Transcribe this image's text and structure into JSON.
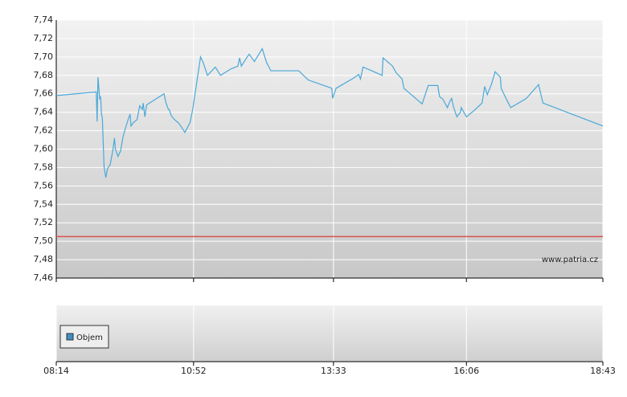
{
  "chart_data": {
    "type": "line",
    "watermark": "www.patria.cz",
    "volume_legend": "Objem",
    "volume_legend_color": "#3d8fc6",
    "xlim": [
      494,
      1123
    ],
    "xticks": [
      {
        "value": 494,
        "label": "08:14"
      },
      {
        "value": 652,
        "label": "10:52"
      },
      {
        "value": 813,
        "label": "13:33"
      },
      {
        "value": 966,
        "label": "16:06"
      },
      {
        "value": 1123,
        "label": "18:43"
      }
    ],
    "ylim": [
      7.46,
      7.74
    ],
    "yticks": [
      {
        "value": 7.46,
        "label": "7,46"
      },
      {
        "value": 7.48,
        "label": "7,48"
      },
      {
        "value": 7.5,
        "label": "7,50"
      },
      {
        "value": 7.52,
        "label": "7,52"
      },
      {
        "value": 7.54,
        "label": "7,54"
      },
      {
        "value": 7.56,
        "label": "7,56"
      },
      {
        "value": 7.58,
        "label": "7,58"
      },
      {
        "value": 7.6,
        "label": "7,60"
      },
      {
        "value": 7.62,
        "label": "7,62"
      },
      {
        "value": 7.64,
        "label": "7,64"
      },
      {
        "value": 7.66,
        "label": "7,66"
      },
      {
        "value": 7.68,
        "label": "7,68"
      },
      {
        "value": 7.7,
        "label": "7,70"
      },
      {
        "value": 7.72,
        "label": "7,72"
      },
      {
        "value": 7.74,
        "label": "7,74"
      }
    ],
    "grid": true,
    "reference_line": {
      "value": 7.505,
      "color": "#d9534f"
    },
    "series": [
      {
        "color": "#4aa8d8",
        "x": [
          494,
          540,
          541,
          542,
          544,
          545,
          546,
          547,
          549,
          550,
          551,
          553,
          556,
          559,
          561,
          562,
          565,
          568,
          571,
          574,
          577,
          579,
          580,
          583,
          587,
          590,
          593,
          594,
          596,
          598,
          618,
          620,
          623,
          624,
          626,
          629,
          635,
          638,
          642,
          643,
          648,
          651,
          655,
          660,
          663,
          668,
          673,
          677,
          683,
          688,
          695,
          703,
          705,
          707,
          713,
          716,
          722,
          731,
          736,
          741,
          773,
          784,
          811,
          812,
          816,
          836,
          842,
          844,
          847,
          857,
          869,
          870,
          881,
          885,
          892,
          894,
          915,
          922,
          933,
          935,
          939,
          944,
          947,
          949,
          951,
          955,
          959,
          960,
          966,
          975,
          984,
          987,
          990,
          995,
          999,
          1005,
          1006,
          1012,
          1017,
          1035,
          1049,
          1054,
          1123
        ],
        "values": [
          7.658,
          7.662,
          7.63,
          7.678,
          7.655,
          7.657,
          7.638,
          7.634,
          7.581,
          7.575,
          7.569,
          7.579,
          7.583,
          7.598,
          7.612,
          7.6,
          7.592,
          7.598,
          7.614,
          7.624,
          7.633,
          7.638,
          7.625,
          7.629,
          7.632,
          7.647,
          7.643,
          7.65,
          7.635,
          7.648,
          7.66,
          7.651,
          7.643,
          7.643,
          7.637,
          7.633,
          7.628,
          7.624,
          7.618,
          7.62,
          7.629,
          7.643,
          7.668,
          7.7,
          7.694,
          7.68,
          7.685,
          7.689,
          7.68,
          7.683,
          7.687,
          7.69,
          7.699,
          7.69,
          7.699,
          7.703,
          7.695,
          7.709,
          7.694,
          7.685,
          7.685,
          7.675,
          7.666,
          7.655,
          7.666,
          7.677,
          7.681,
          7.676,
          7.689,
          7.685,
          7.68,
          7.699,
          7.69,
          7.683,
          7.676,
          7.666,
          7.649,
          7.669,
          7.669,
          7.657,
          7.654,
          7.645,
          7.652,
          7.655,
          7.646,
          7.635,
          7.64,
          7.645,
          7.635,
          7.642,
          7.65,
          7.668,
          7.659,
          7.671,
          7.684,
          7.678,
          7.666,
          7.654,
          7.645,
          7.655,
          7.67,
          7.65,
          7.625
        ]
      }
    ]
  }
}
